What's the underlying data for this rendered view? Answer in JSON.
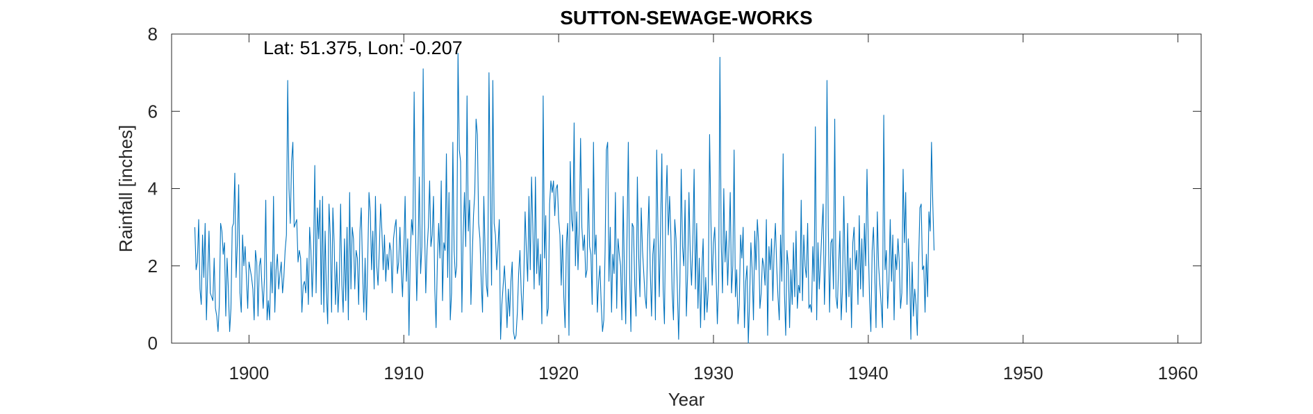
{
  "chart_data": {
    "type": "line",
    "title": "SUTTON-SEWAGE-WORKS",
    "xlabel": "Year",
    "ylabel": "Rainfall [inches]",
    "annotation": "Lat: 51.375, Lon: -0.207",
    "xlim": [
      1895.0,
      1961.5
    ],
    "ylim": [
      0,
      8
    ],
    "xticks": [
      1900,
      1910,
      1920,
      1930,
      1940,
      1950,
      1960
    ],
    "yticks": [
      0,
      2,
      4,
      6,
      8
    ],
    "grid": false,
    "line_color": "#0072BD",
    "axes_color": "#262626",
    "series": [
      {
        "start_year": 1896.5,
        "step_years": 0.0833333,
        "values": [
          3.0,
          1.9,
          2.1,
          3.2,
          1.4,
          1.0,
          2.8,
          1.7,
          3.1,
          0.6,
          1.8,
          2.9,
          1.3,
          1.2,
          1.1,
          2.2,
          0.9,
          0.7,
          0.3,
          1.0,
          3.1,
          2.9,
          2.3,
          2.6,
          0.7,
          2.2,
          1.4,
          0.3,
          0.9,
          3.0,
          3.1,
          4.4,
          1.7,
          2.6,
          4.1,
          1.3,
          0.8,
          2.8,
          2.0,
          2.5,
          1.7,
          0.9,
          2.1,
          1.9,
          1.7,
          1.4,
          0.6,
          2.4,
          2.1,
          0.7,
          2.0,
          2.2,
          1.5,
          0.9,
          1.7,
          3.7,
          0.6,
          1.1,
          0.6,
          2.1,
          1.3,
          3.8,
          0.8,
          1.9,
          2.3,
          1.4,
          1.8,
          2.1,
          1.3,
          1.7,
          2.4,
          2.8,
          6.8,
          4.0,
          3.1,
          4.7,
          5.2,
          3.0,
          3.1,
          3.2,
          2.1,
          2.4,
          2.2,
          0.8,
          1.5,
          1.6,
          1.3,
          2.2,
          1.0,
          3.0,
          2.4,
          1.2,
          2.3,
          4.6,
          1.3,
          3.5,
          2.7,
          3.7,
          1.0,
          3.8,
          0.8,
          2.9,
          1.3,
          0.5,
          3.6,
          2.8,
          0.8,
          3.5,
          2.6,
          1.0,
          2.1,
          0.8,
          1.6,
          3.6,
          1.5,
          0.8,
          2.7,
          1.1,
          3.0,
          0.6,
          3.9,
          1.4,
          3.0,
          2.7,
          1.4,
          2.4,
          2.2,
          1.0,
          2.9,
          3.5,
          1.9,
          0.8,
          2.2,
          0.6,
          2.1,
          3.9,
          3.4,
          1.9,
          2.9,
          1.4,
          3.8,
          2.0,
          1.5,
          2.4,
          3.6,
          2.9,
          1.9,
          2.8,
          1.6,
          2.3,
          1.9,
          2.6,
          2.4,
          1.3,
          2.7,
          3.0,
          3.2,
          1.8,
          2.1,
          3.0,
          1.9,
          1.2,
          2.4,
          3.8,
          1.6,
          2.7,
          0.2,
          2.3,
          3.2,
          2.8,
          6.5,
          3.1,
          1.1,
          2.4,
          4.3,
          1.8,
          2.5,
          7.1,
          3.2,
          1.3,
          2.4,
          3.0,
          4.2,
          2.5,
          2.8,
          3.8,
          1.4,
          0.4,
          2.1,
          3.1,
          2.2,
          4.2,
          1.1,
          2.6,
          2.4,
          4.9,
          1.7,
          3.9,
          0.6,
          1.3,
          5.2,
          2.4,
          1.7,
          2.0,
          7.5,
          5.0,
          4.7,
          0.8,
          2.8,
          3.9,
          2.5,
          6.4,
          2.9,
          3.7,
          1.0,
          2.2,
          3.3,
          3.9,
          5.8,
          5.4,
          3.1,
          2.7,
          1.6,
          0.8,
          3.8,
          2.4,
          1.5,
          1.2,
          7.0,
          4.1,
          1.5,
          6.8,
          3.1,
          2.8,
          1.9,
          2.5,
          3.2,
          0.1,
          1.0,
          1.5,
          2.0,
          1.3,
          0.4,
          1.4,
          0.7,
          1.6,
          2.1,
          0.3,
          0.1,
          0.2,
          0.8,
          1.8,
          2.4,
          1.3,
          0.6,
          1.7,
          3.4,
          2.4,
          1.6,
          3.8,
          1.9,
          4.3,
          3.0,
          1.4,
          4.3,
          1.8,
          2.7,
          1.5,
          2.3,
          0.5,
          6.4,
          2.2,
          3.3,
          0.7,
          0.9,
          3.6,
          4.2,
          3.9,
          4.2,
          3.3,
          4.0,
          4.1,
          3.2,
          2.8,
          1.5,
          2.8,
          1.2,
          0.4,
          2.6,
          3.1,
          0.2,
          4.7,
          3.2,
          2.9,
          5.7,
          2.0,
          3.4,
          1.9,
          3.0,
          5.3,
          3.0,
          2.4,
          2.8,
          1.7,
          1.9,
          4.0,
          2.5,
          2.3,
          1.0,
          5.2,
          2.3,
          2.8,
          0.8,
          1.6,
          2.0,
          1.0,
          0.3,
          0.6,
          2.4,
          5.0,
          5.2,
          1.6,
          3.0,
          0.8,
          2.3,
          1.8,
          3.9,
          0.9,
          2.7,
          2.3,
          2.0,
          0.6,
          3.8,
          1.8,
          0.5,
          2.8,
          5.2,
          1.8,
          0.3,
          3.1,
          3.0,
          1.5,
          0.7,
          4.3,
          2.3,
          1.2,
          3.5,
          2.4,
          1.8,
          1.2,
          0.9,
          2.7,
          3.8,
          1.9,
          0.7,
          2.3,
          2.7,
          0.6,
          5.0,
          2.9,
          1.2,
          3.0,
          4.9,
          1.4,
          0.5,
          3.5,
          4.6,
          2.8,
          3.8,
          2.8,
          1.3,
          0.6,
          3.2,
          2.7,
          1.4,
          0.1,
          1.6,
          4.5,
          2.5,
          2.0,
          3.7,
          0.7,
          1.8,
          3.9,
          2.3,
          1.5,
          2.6,
          4.5,
          1.4,
          3.1,
          0.9,
          2.2,
          0.4,
          1.9,
          2.7,
          0.6,
          1.7,
          0.8,
          1.4,
          5.4,
          3.2,
          1.5,
          2.6,
          3.0,
          1.8,
          0.5,
          1.6,
          7.4,
          2.6,
          1.3,
          4.0,
          2.1,
          2.9,
          1.5,
          2.5,
          3.9,
          1.3,
          2.0,
          5.0,
          1.2,
          1.9,
          0.5,
          1.0,
          2.8,
          2.2,
          3.0,
          0.4,
          1.6,
          2.0,
          0.0,
          1.1,
          2.6,
          1.9,
          0.6,
          2.9,
          1.9,
          3.2,
          2.6,
          0.9,
          1.3,
          2.2,
          2.0,
          1.5,
          3.2,
          0.2,
          2.5,
          1.9,
          2.7,
          1.1,
          2.4,
          3.1,
          2.0,
          1.2,
          0.6,
          2.8,
          1.6,
          4.9,
          1.3,
          0.2,
          2.4,
          2.0,
          0.4,
          1.9,
          1.0,
          2.6,
          1.2,
          2.9,
          0.9,
          1.5,
          1.3,
          3.7,
          1.1,
          2.8,
          2.0,
          1.7,
          3.1,
          0.9,
          1.0,
          0.8,
          2.5,
          1.6,
          5.6,
          0.6,
          2.6,
          1.4,
          2.1,
          2.9,
          3.6,
          1.0,
          2.3,
          6.8,
          3.0,
          0.8,
          2.6,
          2.7,
          1.4,
          5.8,
          1.2,
          0.9,
          2.0,
          2.9,
          0.6,
          1.4,
          3.8,
          2.0,
          0.8,
          3.1,
          1.2,
          2.2,
          0.4,
          2.6,
          3.0,
          1.9,
          2.4,
          1.0,
          3.3,
          1.4,
          2.7,
          1.2,
          3.1,
          2.0,
          4.5,
          2.6,
          1.1,
          0.3,
          2.4,
          3.0,
          1.8,
          0.4,
          3.4,
          2.0,
          1.5,
          1.0,
          0.4,
          5.9,
          1.9,
          2.4,
          0.9,
          1.6,
          3.2,
          1.6,
          2.8,
          0.6,
          2.3,
          1.9,
          2.7,
          2.1,
          0.9,
          1.3,
          4.5,
          2.6,
          3.9,
          1.0,
          2.7,
          1.9,
          0.1,
          2.1,
          0.7,
          1.4,
          1.0,
          0.2,
          2.1,
          3.5,
          3.6,
          1.9,
          2.0,
          0.8,
          2.3,
          1.2,
          3.4,
          2.9,
          5.2,
          3.6,
          2.4
        ]
      }
    ]
  }
}
